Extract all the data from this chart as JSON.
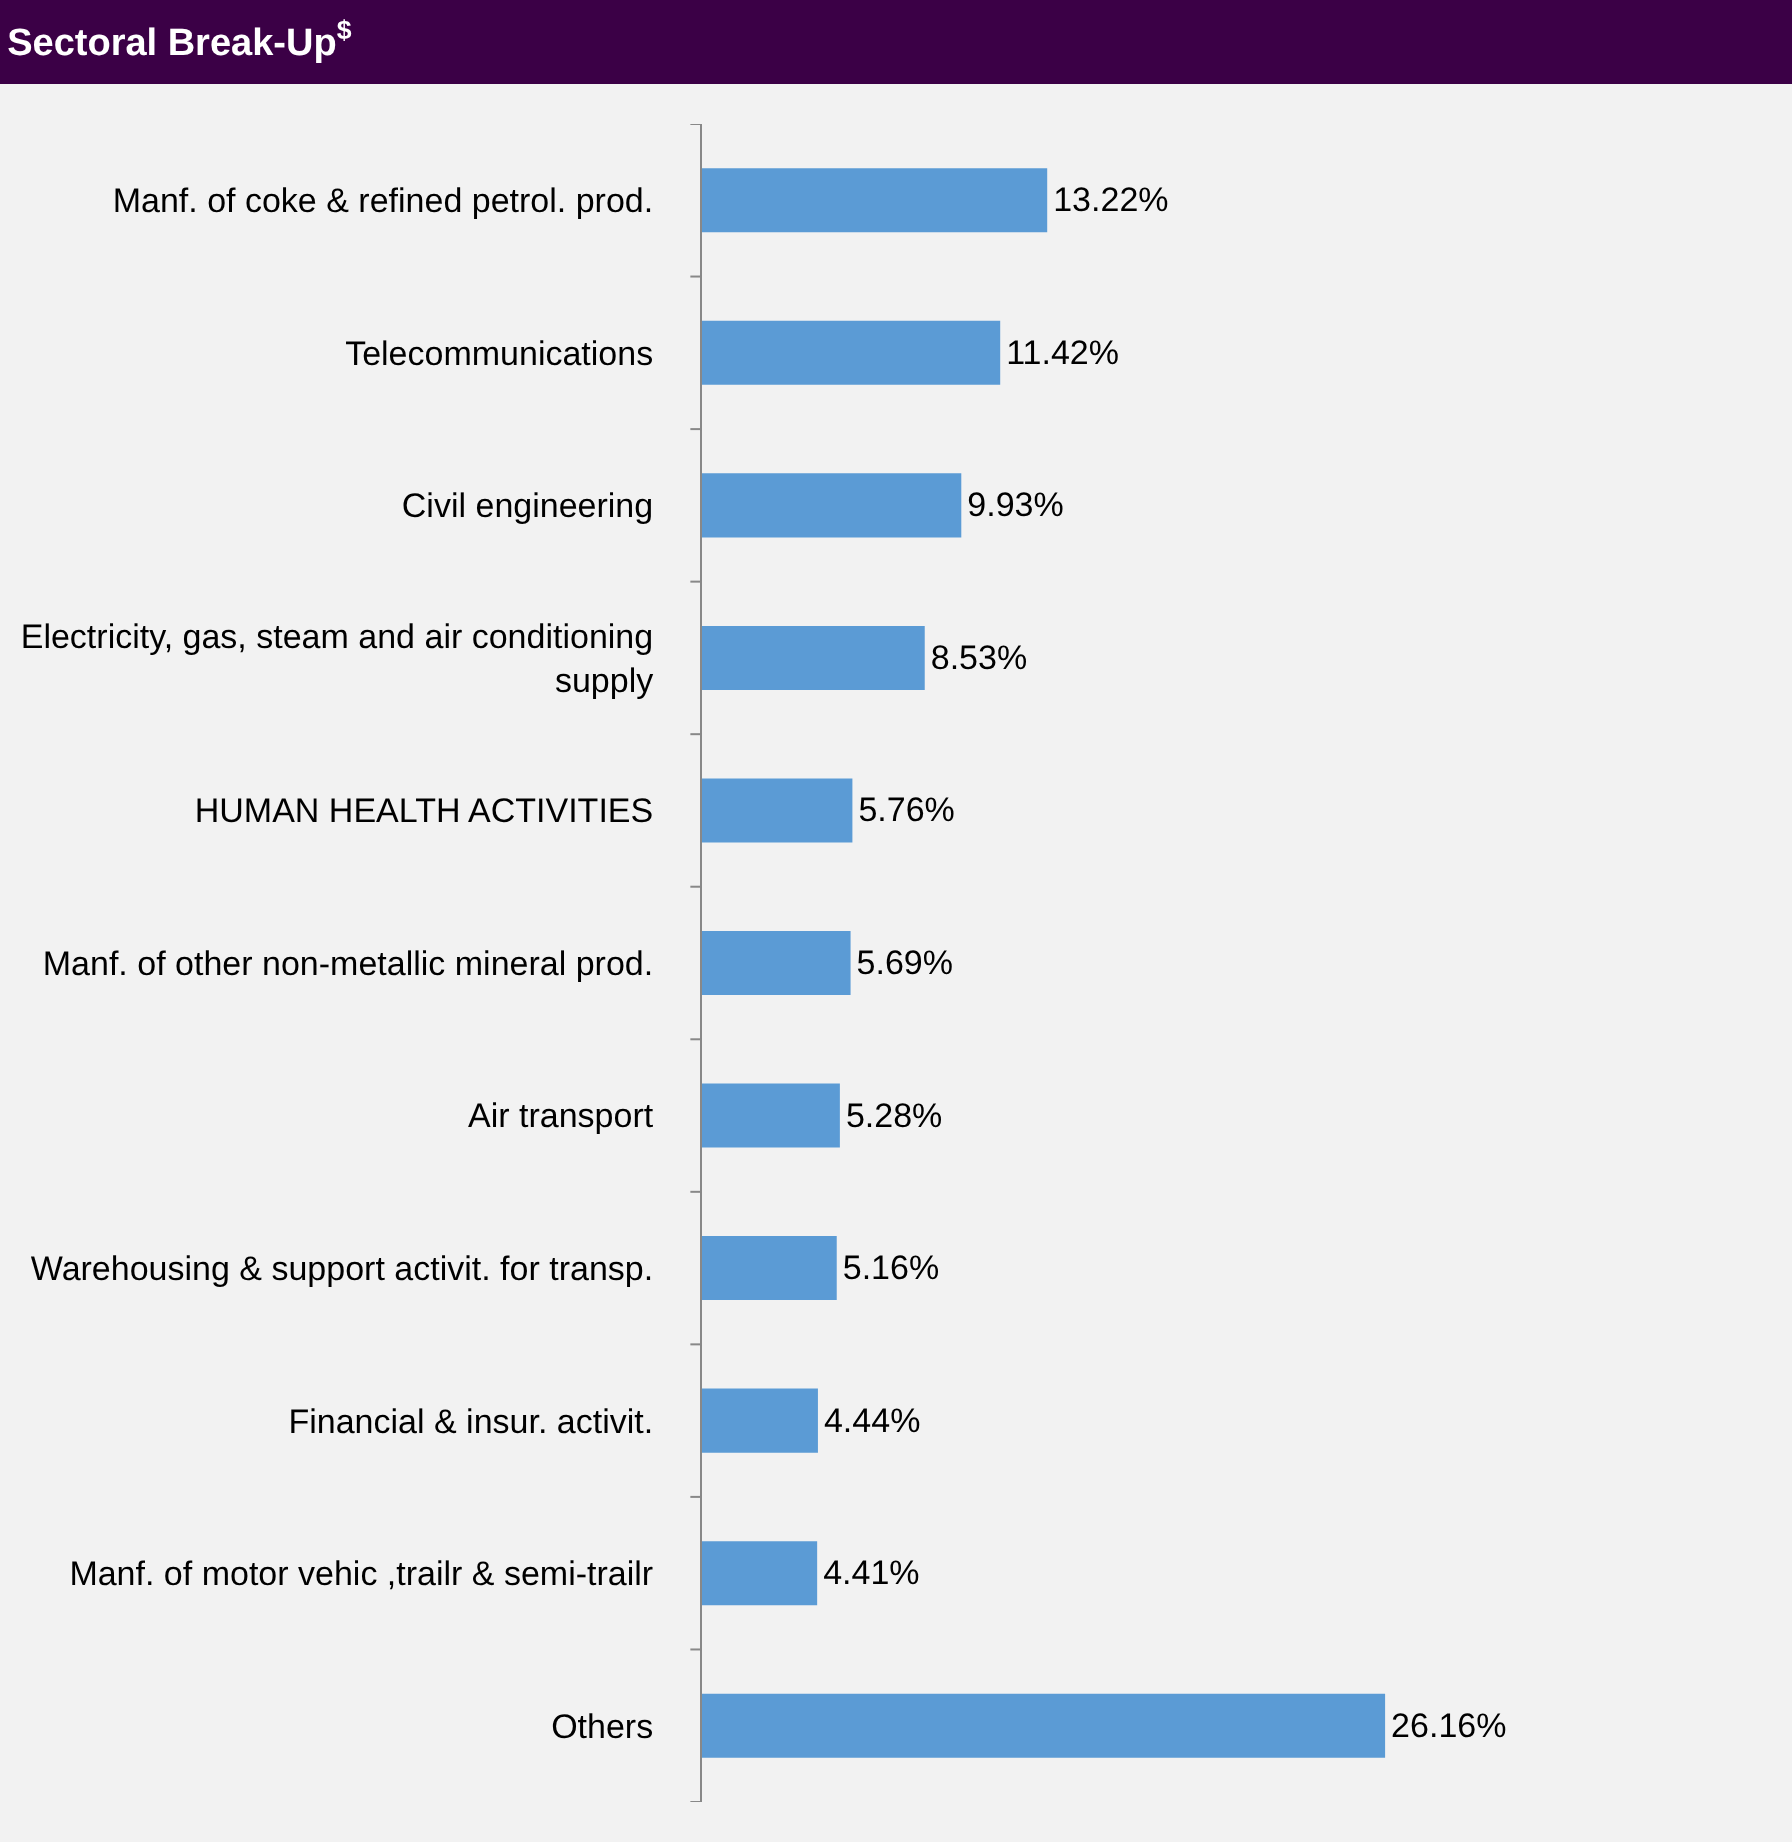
{
  "chart_data": {
    "type": "bar",
    "orientation": "horizontal",
    "title": "Sectoral Break-Up$^{$}$",
    "categories": [
      "Manf. of coke & refined petrol. prod.",
      "Telecommunications",
      "Civil engineering",
      "Electricity, gas, steam and air conditioning supply",
      "HUMAN HEALTH ACTIVITIES",
      "Manf. of other non-metallic mineral prod.",
      "Air transport",
      "Warehousing & support activit. for transp.",
      "Financial & insur. activit.",
      "Manf. of motor vehic ,trailr & semi-trailr",
      "Others"
    ],
    "series": [
      {
        "color": "#5b9bd5",
        "values": [
          13.22,
          11.42,
          9.93,
          8.53,
          5.76,
          5.69,
          5.28,
          5.16,
          4.44,
          4.41,
          26.16
        ],
        "value_labels": [
          "13.22%",
          "11.42%",
          "9.93%",
          "8.53%",
          "5.76%",
          "5.69%",
          "5.28%",
          "5.16%",
          "4.44%",
          "4.41%",
          "26.16%"
        ]
      }
    ]
  }
}
